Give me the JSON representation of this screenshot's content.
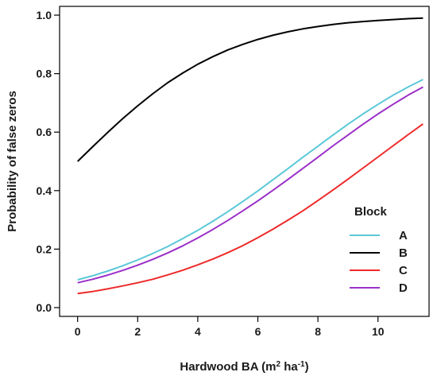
{
  "chart_data": {
    "type": "line",
    "title": "",
    "xlabel": "Hardwood BA (m² ha⁻¹)",
    "ylabel": "Probability of false zeros",
    "xlim": [
      -0.6,
      11.7
    ],
    "ylim": [
      -0.03,
      1.03
    ],
    "x_ticks": [
      0,
      2,
      4,
      6,
      8,
      10
    ],
    "y_ticks": [
      0.0,
      0.2,
      0.4,
      0.6,
      0.8,
      1.0
    ],
    "x_tick_labels": [
      "0",
      "2",
      "4",
      "6",
      "8",
      "10"
    ],
    "y_tick_labels": [
      "0.0",
      "0.2",
      "0.4",
      "0.6",
      "0.8",
      "1.0"
    ],
    "grid": false,
    "legend": {
      "title": "Block",
      "placement": "right"
    },
    "x": [
      0,
      0.5,
      1,
      1.5,
      2,
      2.5,
      3,
      3.5,
      4,
      4.5,
      5,
      5.5,
      6,
      6.5,
      7,
      7.5,
      8,
      8.5,
      9,
      9.5,
      10,
      10.5,
      11,
      11.5
    ],
    "series": [
      {
        "name": "A",
        "color": "#5bc8d8",
        "values": [
          0.095,
          0.109,
          0.125,
          0.143,
          0.163,
          0.185,
          0.209,
          0.236,
          0.264,
          0.295,
          0.328,
          0.363,
          0.399,
          0.437,
          0.475,
          0.514,
          0.552,
          0.59,
          0.627,
          0.662,
          0.695,
          0.726,
          0.754,
          0.78
        ]
      },
      {
        "name": "B",
        "color": "#000000",
        "values": [
          0.5,
          0.55,
          0.599,
          0.646,
          0.69,
          0.731,
          0.769,
          0.802,
          0.832,
          0.858,
          0.881,
          0.9,
          0.917,
          0.931,
          0.943,
          0.953,
          0.961,
          0.968,
          0.974,
          0.978,
          0.982,
          0.985,
          0.988,
          0.99
        ]
      },
      {
        "name": "C",
        "color": "#ee2a2a",
        "values": [
          0.048,
          0.055,
          0.064,
          0.074,
          0.085,
          0.097,
          0.112,
          0.128,
          0.146,
          0.166,
          0.188,
          0.212,
          0.239,
          0.268,
          0.299,
          0.331,
          0.366,
          0.402,
          0.439,
          0.477,
          0.515,
          0.553,
          0.591,
          0.628
        ]
      },
      {
        "name": "D",
        "color": "#9b30c8",
        "values": [
          0.085,
          0.097,
          0.111,
          0.127,
          0.145,
          0.165,
          0.187,
          0.211,
          0.238,
          0.267,
          0.298,
          0.331,
          0.365,
          0.401,
          0.438,
          0.476,
          0.514,
          0.553,
          0.59,
          0.627,
          0.662,
          0.695,
          0.726,
          0.754
        ]
      }
    ]
  }
}
